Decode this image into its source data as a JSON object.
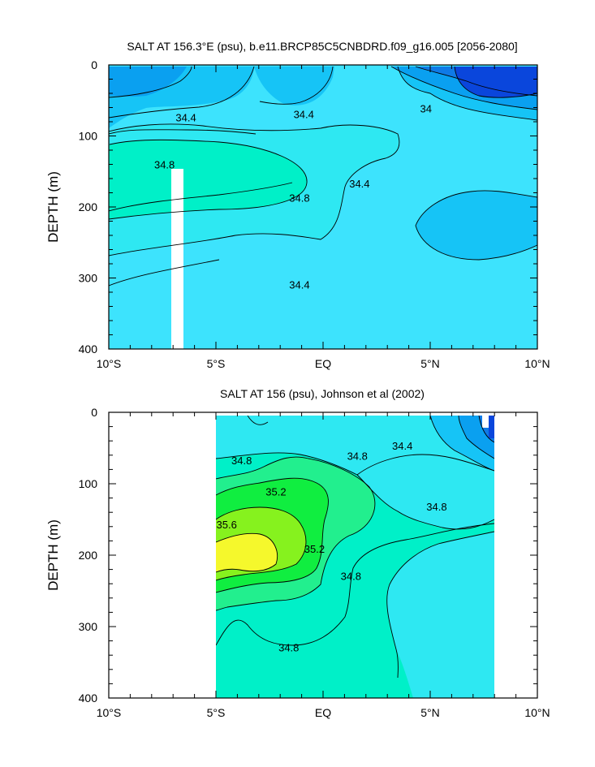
{
  "colors": {
    "c33_6": "#0a46dc",
    "c33_8": "#0f7ae6",
    "c34_0": "#0aa0f0",
    "c34_2": "#16c4f6",
    "c34_4": "#3de3fd",
    "c34_6": "#2ee8f2",
    "c34_8": "#00f0c8",
    "c35_0": "#22ef8e",
    "c35_2": "#10ee40",
    "c35_4": "#86f21e",
    "c35_6": "#f5f82c"
  },
  "chart_data": [
    {
      "type": "contour",
      "title": "SALT AT 156.3°E (psu), b.e11.BRCP85C5CNBDRD.f09_g16.005 [2056-2080]",
      "ylabel": "DEPTH (m)",
      "x_ticks": [
        {
          "value": -10,
          "label": "10°S"
        },
        {
          "value": -5,
          "label": "5°S"
        },
        {
          "value": 0,
          "label": "EQ"
        },
        {
          "value": 5,
          "label": "5°N"
        },
        {
          "value": 10,
          "label": "10°N"
        }
      ],
      "y_ticks": [
        0,
        100,
        200,
        300,
        400
      ],
      "xlim": [
        -10,
        10
      ],
      "ylim": [
        400,
        0
      ],
      "contour_labels": [
        {
          "text": "34.4",
          "x": -6.4,
          "y": 75
        },
        {
          "text": "34.4",
          "x": -0.9,
          "y": 70
        },
        {
          "text": "34",
          "x": 4.8,
          "y": 62
        },
        {
          "text": "34.8",
          "x": -7.4,
          "y": 141
        },
        {
          "text": "34.8",
          "x": -1.1,
          "y": 188
        },
        {
          "text": "34.4",
          "x": 1.7,
          "y": 168
        },
        {
          "text": "34.4",
          "x": -1.1,
          "y": 310
        }
      ]
    },
    {
      "type": "contour",
      "title": "SALT AT 156 (psu), Johnson et al (2002)",
      "ylabel": "DEPTH (m)",
      "x_ticks": [
        {
          "value": -10,
          "label": "10°S"
        },
        {
          "value": -5,
          "label": "5°S"
        },
        {
          "value": 0,
          "label": "EQ"
        },
        {
          "value": 5,
          "label": "5°N"
        },
        {
          "value": 10,
          "label": "10°N"
        }
      ],
      "y_ticks": [
        0,
        100,
        200,
        300,
        400
      ],
      "xlim": [
        -10,
        10
      ],
      "ylim": [
        400,
        0
      ],
      "data_extent_x": [
        -5,
        8
      ],
      "contour_labels": [
        {
          "text": "34.8",
          "x": -3.8,
          "y": 68
        },
        {
          "text": "35.2",
          "x": -2.2,
          "y": 112
        },
        {
          "text": "35.6",
          "x": -4.5,
          "y": 158
        },
        {
          "text": "34.8",
          "x": 1.6,
          "y": 62
        },
        {
          "text": "34.4",
          "x": 3.7,
          "y": 48
        },
        {
          "text": "34.8",
          "x": 5.3,
          "y": 133
        },
        {
          "text": "35.2",
          "x": -0.4,
          "y": 192
        },
        {
          "text": "34.8",
          "x": 1.3,
          "y": 230
        },
        {
          "text": "34.8",
          "x": -1.6,
          "y": 330
        }
      ]
    }
  ]
}
